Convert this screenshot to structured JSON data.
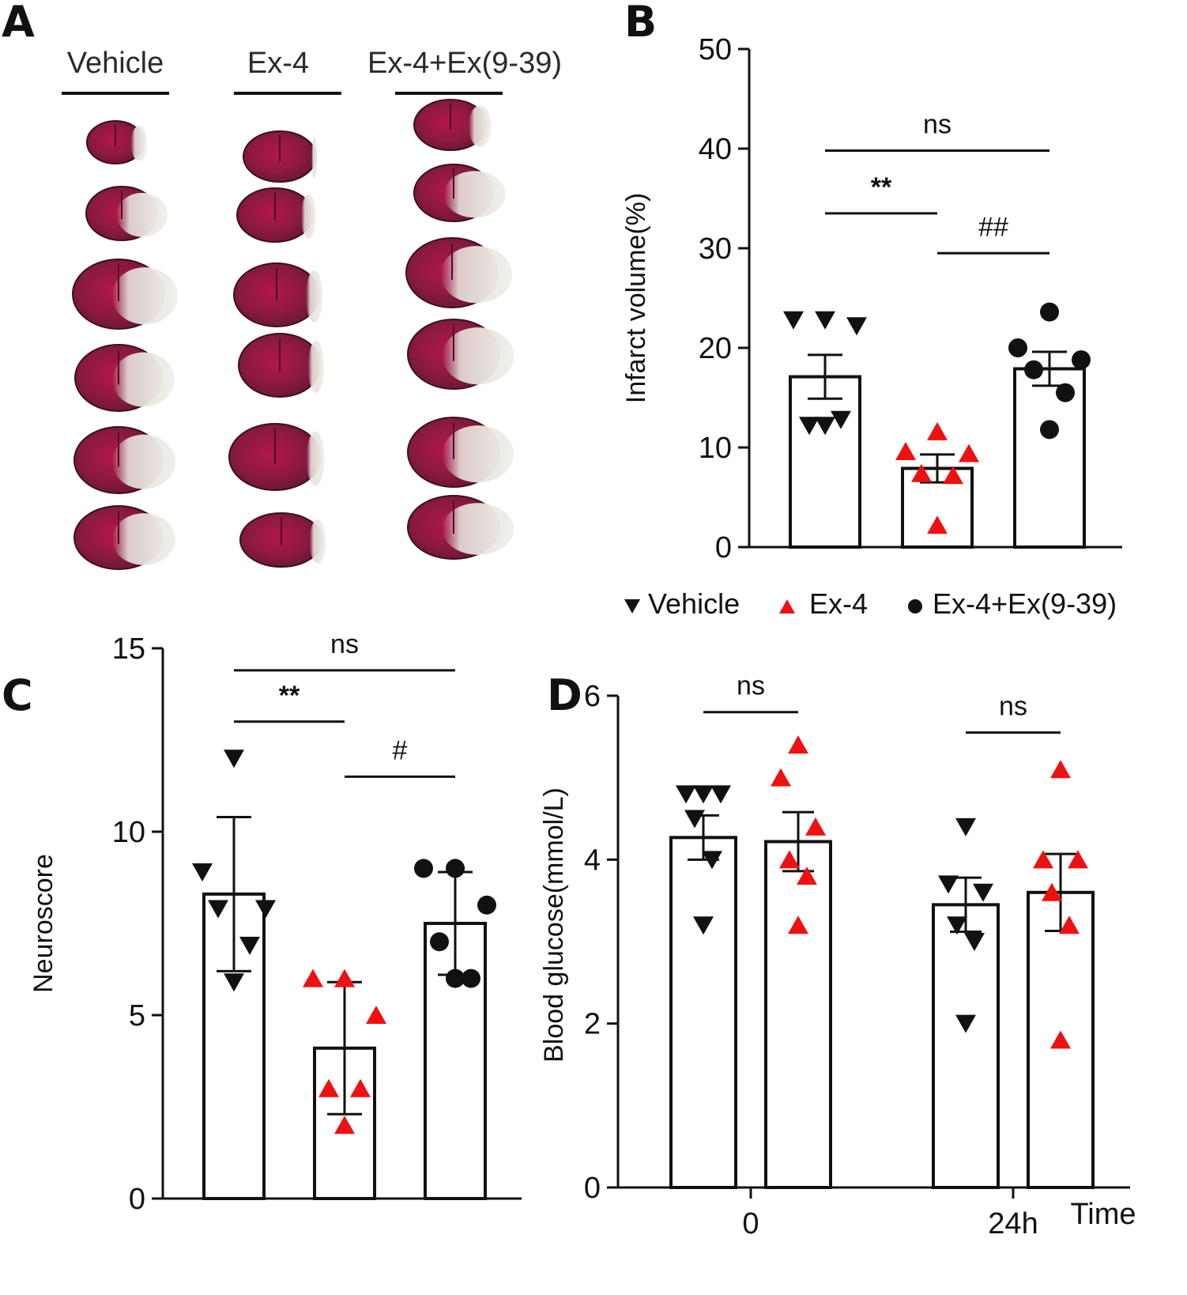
{
  "panel_labels": {
    "a": "A",
    "b": "B",
    "c": "C",
    "d": "D"
  },
  "colors": {
    "vehicle": "#111111",
    "ex4": "#ee1111",
    "antagonist": "#111111"
  },
  "legend": [
    {
      "symbol": "down-triangle",
      "label": "Vehicle"
    },
    {
      "symbol": "up-triangle",
      "label": "Ex-4"
    },
    {
      "symbol": "circle",
      "label": "Ex-4+Ex(9-39)"
    }
  ],
  "panel_a": {
    "groups": [
      "Vehicle",
      "Ex-4",
      "Ex-4+Ex(9-39)"
    ],
    "slices_per_group": 6
  },
  "chart_data": [
    {
      "id": "B",
      "type": "bar",
      "ylabel": "Infarct volume(%)",
      "ylim": [
        0,
        50
      ],
      "yticks": [
        0,
        10,
        20,
        30,
        40,
        50
      ],
      "categories": [
        "Vehicle",
        "Ex-4",
        "Ex-4+Ex(9-39)"
      ],
      "values": [
        17.1,
        7.9,
        17.9
      ],
      "error": [
        2.2,
        1.4,
        1.7
      ],
      "points": [
        [
          22.8,
          22.8,
          22.2,
          12.2,
          12.8,
          12.2
        ],
        [
          11.6,
          9.6,
          9.4,
          7.4,
          7.2,
          2.2
        ],
        [
          23.6,
          20.0,
          18.8,
          17.8,
          15.5,
          11.8
        ]
      ],
      "comparisons": [
        {
          "from": 0,
          "to": 2,
          "value": 39.8,
          "label": "ns"
        },
        {
          "from": 0,
          "to": 1,
          "value": 33.5,
          "label": "**"
        },
        {
          "from": 1,
          "to": 2,
          "value": 29.5,
          "label": "##"
        }
      ]
    },
    {
      "id": "C",
      "type": "bar",
      "ylabel": "Neuroscore",
      "ylim": [
        0,
        15
      ],
      "yticks": [
        0,
        5,
        10,
        15
      ],
      "categories": [
        "Vehicle",
        "Ex-4",
        "Ex-4+Ex(9-39)"
      ],
      "values": [
        8.3,
        4.1,
        7.5
      ],
      "error": [
        2.1,
        1.8,
        1.4
      ],
      "points": [
        [
          12.0,
          8.9,
          7.9,
          7.9,
          6.9,
          5.9
        ],
        [
          6.0,
          6.0,
          5.0,
          3.0,
          3.0,
          2.0
        ],
        [
          9.0,
          9.0,
          8.0,
          7.0,
          6.0,
          6.0
        ]
      ],
      "comparisons": [
        {
          "from": 0,
          "to": 2,
          "value": 14.4,
          "label": "ns"
        },
        {
          "from": 0,
          "to": 1,
          "value": 13.0,
          "label": "**"
        },
        {
          "from": 1,
          "to": 2,
          "value": 11.5,
          "label": "#"
        }
      ]
    },
    {
      "id": "D",
      "type": "bar",
      "ylabel": "Blood glucose(mmol/L)",
      "xlabel": "Time",
      "ylim": [
        0,
        6
      ],
      "yticks": [
        0,
        2,
        4,
        6
      ],
      "categories": [
        "0",
        "24h"
      ],
      "series": [
        {
          "name": "Vehicle",
          "values": [
            4.27,
            3.45
          ],
          "error": [
            0.27,
            0.33
          ],
          "points": [
            [
              4.8,
              4.8,
              4.8,
              4.5,
              4.0,
              3.2
            ],
            [
              4.4,
              3.7,
              3.6,
              3.2,
              3.0,
              2.0
            ]
          ]
        },
        {
          "name": "Ex-4",
          "values": [
            4.22,
            3.6
          ],
          "error": [
            0.36,
            0.47
          ],
          "points": [
            [
              5.4,
              5.0,
              4.4,
              4.0,
              3.8,
              3.2
            ],
            [
              5.1,
              4.0,
              4.0,
              3.6,
              3.2,
              1.8
            ]
          ]
        }
      ],
      "comparisons": [
        {
          "group": 0,
          "value": 5.8,
          "label": "ns"
        },
        {
          "group": 1,
          "value": 5.55,
          "label": "ns"
        }
      ]
    }
  ]
}
